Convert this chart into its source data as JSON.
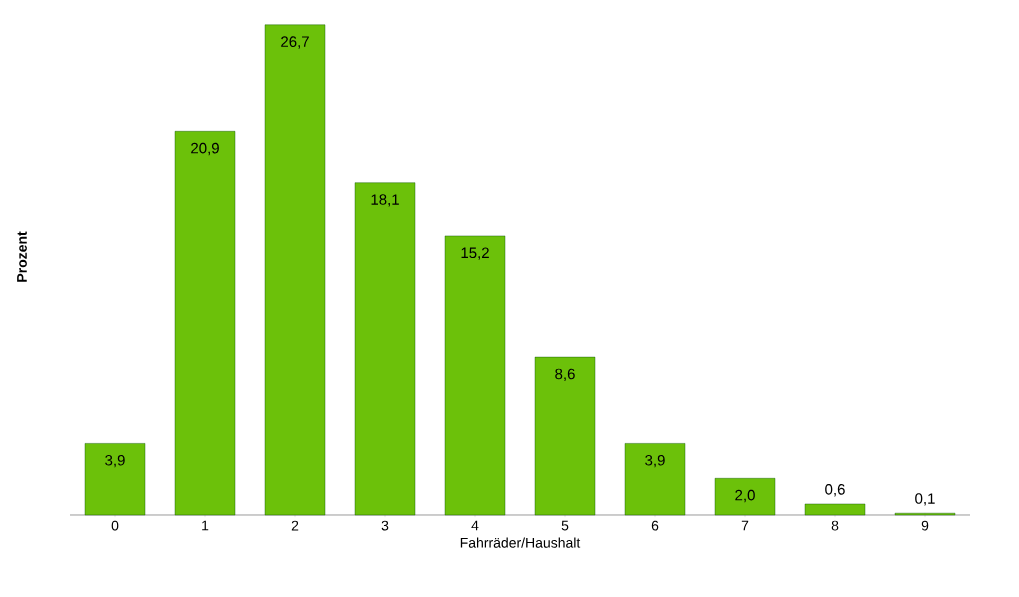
{
  "chart_data": {
    "type": "bar",
    "xlabel": "Fahrräder/Haushalt",
    "ylabel": "Prozent",
    "categories": [
      "0",
      "1",
      "2",
      "3",
      "4",
      "5",
      "6",
      "7",
      "8",
      "9"
    ],
    "values": [
      3.9,
      20.9,
      26.7,
      18.1,
      15.2,
      8.6,
      3.9,
      2.0,
      0.6,
      0.1
    ],
    "value_labels": [
      "3,9",
      "20,9",
      "26,7",
      "18,1",
      "15,2",
      "8,6",
      "3,9",
      "2,0",
      "0,6",
      "0,1"
    ],
    "color": "#6cc10a"
  }
}
